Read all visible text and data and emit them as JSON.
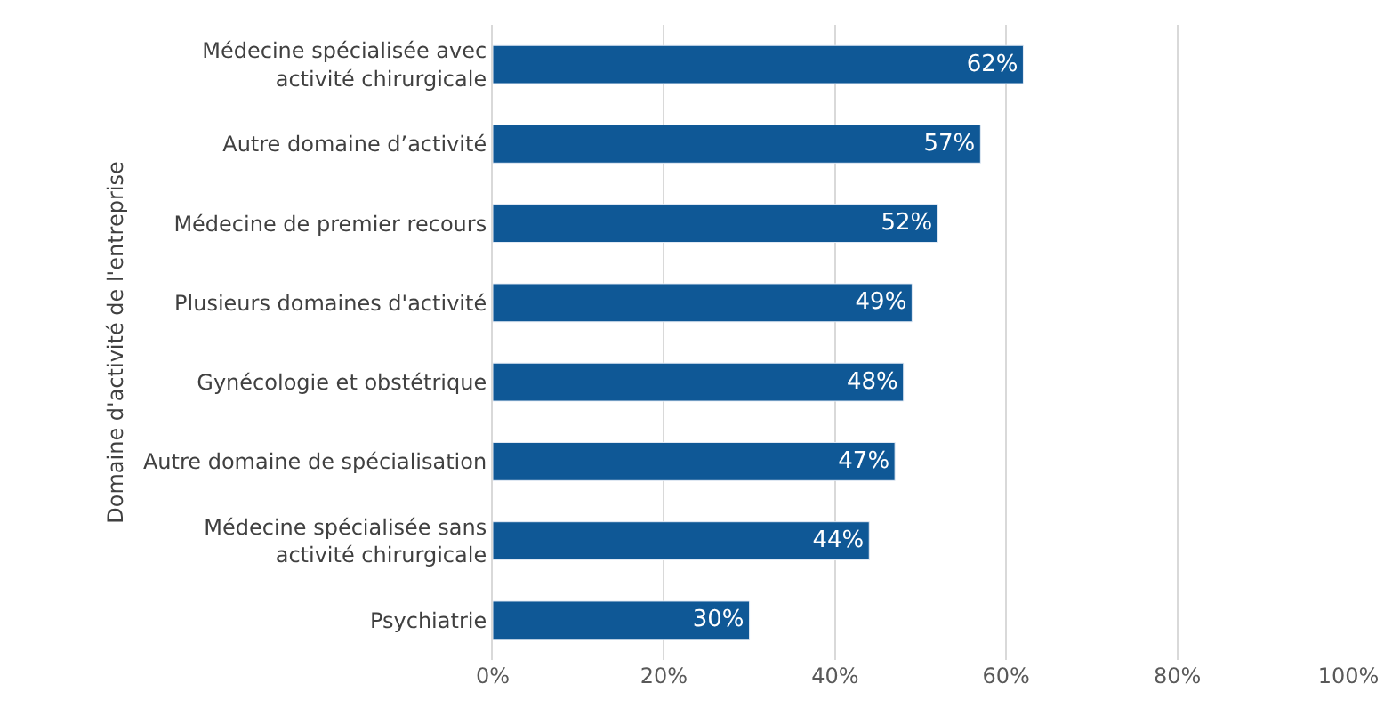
{
  "chart_data": {
    "type": "bar",
    "orientation": "horizontal",
    "ylabel": "Domaine d'activité de l'entreprise",
    "categories": [
      "Médecine spécialisée avec\nactivité chirurgicale",
      "Autre domaine d’activité",
      "Médecine de premier recours",
      "Plusieurs domaines d'activité",
      "Gynécologie et obstétrique",
      "Autre domaine de spécialisation",
      "Médecine spécialisée sans\nactivité chirurgicale",
      "Psychiatrie"
    ],
    "values": [
      62,
      57,
      52,
      49,
      48,
      47,
      44,
      30
    ],
    "value_labels": [
      "62%",
      "57%",
      "52%",
      "49%",
      "48%",
      "47%",
      "44%",
      "30%"
    ],
    "color": "#0f5896",
    "xlim": [
      0,
      100
    ],
    "xticks": [
      {
        "value": 0,
        "label": "0%"
      },
      {
        "value": 20,
        "label": "20%"
      },
      {
        "value": 40,
        "label": "40%"
      },
      {
        "value": 60,
        "label": "60%"
      },
      {
        "value": 80,
        "label": "80%"
      },
      {
        "value": 100,
        "label": "100%"
      }
    ],
    "grid": "x",
    "legend": false
  }
}
